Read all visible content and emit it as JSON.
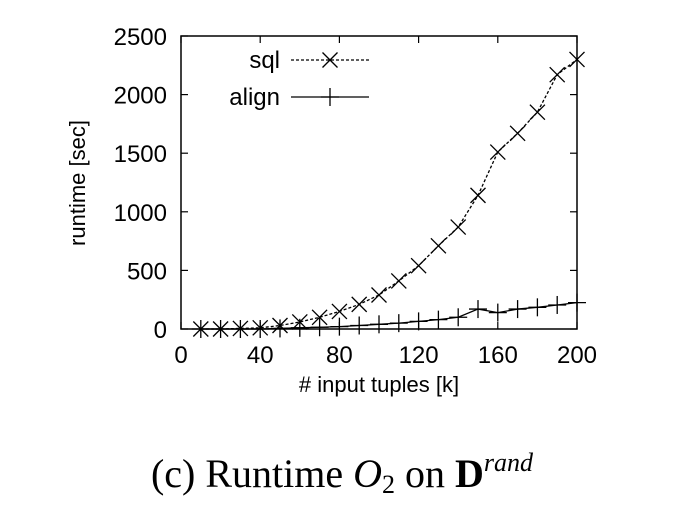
{
  "chart_data": {
    "type": "line",
    "xlabel": "# input tuples [k]",
    "ylabel": "runtime [sec]",
    "xlim": [
      0,
      200
    ],
    "ylim": [
      0,
      2500
    ],
    "x_ticks": [
      0,
      40,
      80,
      120,
      160,
      200
    ],
    "y_ticks": [
      0,
      500,
      1000,
      1500,
      2000,
      2500
    ],
    "grid": false,
    "legend_position": "top-left",
    "x": [
      10,
      20,
      30,
      40,
      50,
      60,
      70,
      80,
      90,
      100,
      110,
      120,
      130,
      140,
      150,
      160,
      170,
      180,
      190,
      200
    ],
    "series": [
      {
        "name": "sql",
        "marker": "x",
        "line_style": "dashed",
        "values": [
          0,
          0,
          5,
          10,
          30,
          60,
          100,
          150,
          210,
          290,
          410,
          540,
          710,
          870,
          1140,
          1510,
          1670,
          1850,
          2170,
          2300
        ]
      },
      {
        "name": "align",
        "marker": "+",
        "line_style": "solid",
        "values": [
          0,
          0,
          0,
          0,
          5,
          10,
          15,
          20,
          30,
          40,
          50,
          65,
          80,
          100,
          170,
          140,
          170,
          185,
          205,
          225
        ]
      }
    ]
  },
  "caption": {
    "prefix": "(c) Runtime ",
    "math_symbol": "O",
    "math_subscript": "2",
    "middle": " on ",
    "bold_symbol": "D",
    "superscript": "rand"
  }
}
